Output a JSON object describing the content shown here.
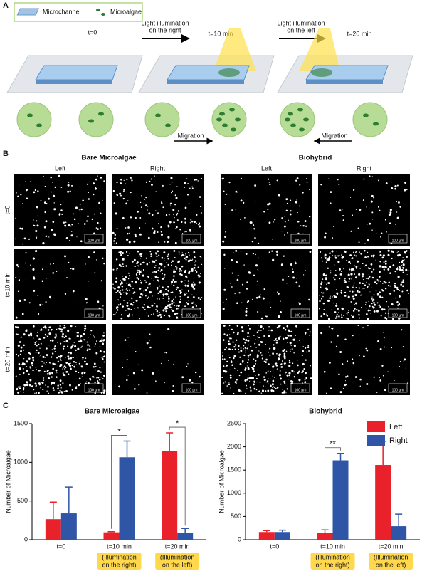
{
  "panel_labels": [
    "A",
    "B",
    "C"
  ],
  "diagram": {
    "legend": [
      "Microchannel",
      "Microalgae"
    ],
    "times": [
      "t=0",
      "t=10 min",
      "t=20 min"
    ],
    "arrows": [
      [
        "Light illumination",
        "on the right"
      ],
      [
        "Light illumination",
        "on the left"
      ]
    ],
    "migration": "Migration"
  },
  "images": {
    "groups": [
      "Bare Microalgae",
      "Biohybrid"
    ],
    "columns": [
      "Left",
      "Right",
      "Left",
      "Right"
    ],
    "rows": [
      "t=0",
      "t=10 min",
      "t=20 min"
    ],
    "scale_bar": "100 µm"
  },
  "chart_data": [
    {
      "type": "bar",
      "title": "Bare Microalgae",
      "y_label": "Number of Microalgae",
      "categories": [
        "t=0",
        "t=10 min",
        "t=20 min"
      ],
      "annotations": [
        null,
        [
          "(Illumination",
          "on the right)"
        ],
        [
          "(Illumination",
          "on the left)"
        ]
      ],
      "series": [
        {
          "name": "Left",
          "color": "#e8212b",
          "values": [
            265,
            95,
            1150
          ],
          "errors": [
            220,
            8,
            230
          ]
        },
        {
          "name": "Right",
          "color": "#2f55a6",
          "values": [
            340,
            1065,
            90
          ],
          "errors": [
            340,
            210,
            55
          ]
        }
      ],
      "significance": [
        null,
        "*",
        "*"
      ],
      "ylim": [
        0,
        1500
      ],
      "yticks": [
        0,
        500,
        1000,
        1500
      ],
      "legend": false
    },
    {
      "type": "bar",
      "title": "Biohybrid",
      "y_label": "Number of Microalgae",
      "categories": [
        "t=0",
        "t=10 min",
        "t=20 min"
      ],
      "annotations": [
        null,
        [
          "(Illumination",
          "on the right)"
        ],
        [
          "(Illumination",
          "on the left)"
        ]
      ],
      "series": [
        {
          "name": "Left",
          "color": "#e8212b",
          "values": [
            165,
            150,
            1610
          ],
          "errors": [
            30,
            60,
            510
          ]
        },
        {
          "name": "Right",
          "color": "#2f55a6",
          "values": [
            165,
            1710,
            290
          ],
          "errors": [
            40,
            150,
            260
          ]
        }
      ],
      "significance": [
        null,
        "**",
        null
      ],
      "ylim": [
        0,
        2500
      ],
      "yticks": [
        0,
        500,
        1000,
        1500,
        2000,
        2500
      ],
      "legend": "upper right"
    }
  ]
}
